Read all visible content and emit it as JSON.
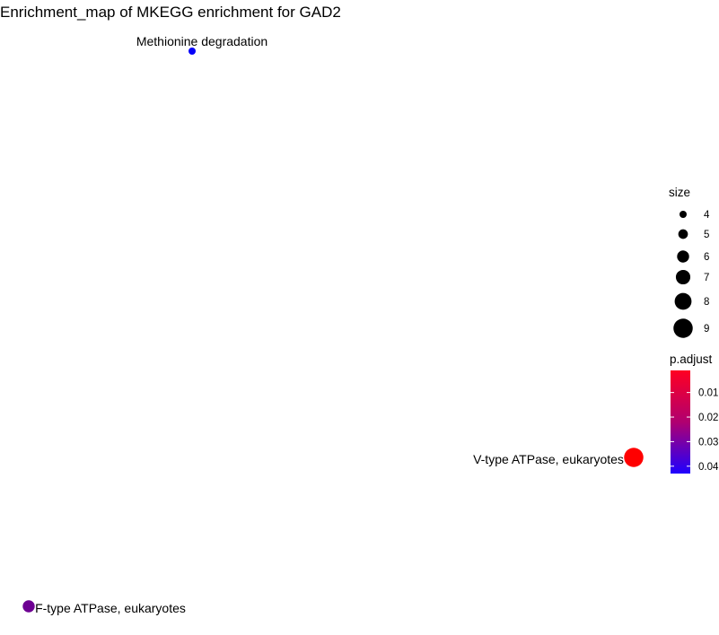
{
  "chart_data": {
    "type": "scatter",
    "title": "Enrichment_map of MKEGG enrichment for GAD2",
    "xlabel": "",
    "ylabel": "",
    "grid": false,
    "legend_placement": "right",
    "points": [
      {
        "label": "Methionine degradation",
        "size": 4,
        "p_adjust": 0.042
      },
      {
        "label": "V-type ATPase, eukaryotes",
        "size": 9,
        "p_adjust": 0.001
      },
      {
        "label": "F-type ATPase, eukaryotes",
        "size": 6,
        "p_adjust": 0.025
      }
    ],
    "size_legend": {
      "title": "size",
      "values": [
        4,
        5,
        6,
        7,
        8,
        9
      ]
    },
    "color_legend": {
      "title": "p.adjust",
      "ticks": [
        "0.01",
        "0.02",
        "0.03",
        "0.04"
      ],
      "range": [
        0.001,
        0.043
      ],
      "low_color": "#ff0000",
      "high_color": "#0000ff"
    }
  }
}
